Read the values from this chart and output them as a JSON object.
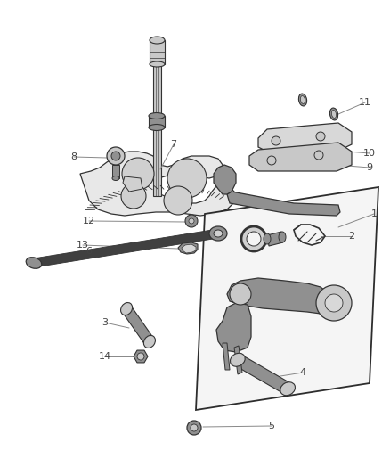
{
  "background_color": "#ffffff",
  "line_color": "#333333",
  "label_color": "#444444",
  "leader_color": "#888888",
  "part_gray": "#909090",
  "part_light": "#c8c8c8",
  "part_dark": "#505050",
  "figsize": [
    4.38,
    5.33
  ],
  "dpi": 100
}
